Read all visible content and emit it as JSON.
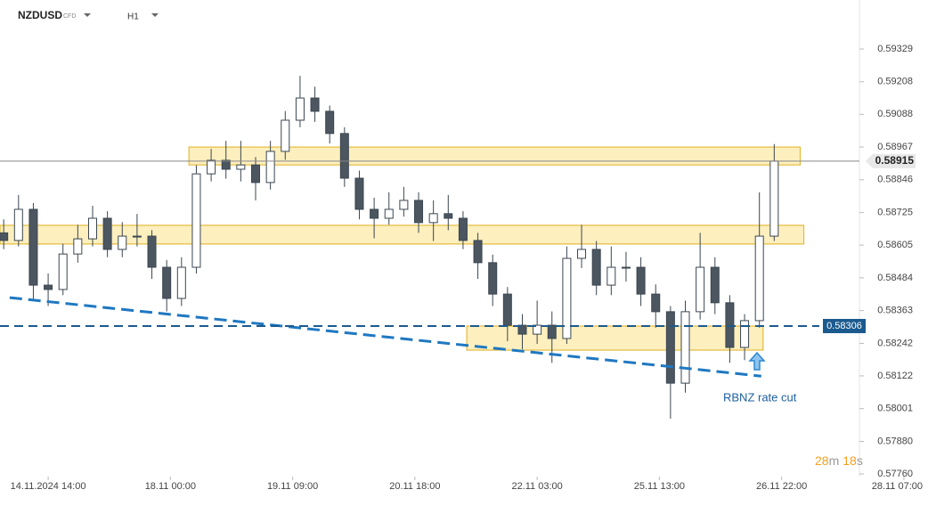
{
  "header": {
    "symbol": "NZDUSD",
    "instrument_type": "CFD",
    "timeframe": "H1"
  },
  "chart_data": {
    "type": "candlestick",
    "x": [
      -12,
      -8,
      -4,
      0,
      4,
      8,
      12,
      16,
      20,
      24,
      28,
      32,
      36,
      40,
      44,
      48,
      52,
      56,
      60,
      64,
      68,
      72,
      76,
      80,
      84,
      88,
      92,
      96,
      100,
      104,
      108,
      112,
      116,
      120,
      124,
      128,
      132,
      136,
      140,
      144,
      148,
      152,
      156,
      160,
      164,
      168,
      172,
      176,
      180,
      184,
      188,
      192,
      196
    ],
    "open": [
      0.5865,
      0.58622,
      0.58737,
      0.58457,
      0.58441,
      0.58572,
      0.58628,
      0.58704,
      0.58589,
      0.58638,
      0.58638,
      0.58523,
      0.58408,
      0.58523,
      0.58868,
      0.58918,
      0.58885,
      0.58901,
      0.58836,
      0.58951,
      0.59066,
      0.59148,
      0.59099,
      0.59017,
      0.58852,
      0.58737,
      0.58704,
      0.58737,
      0.5877,
      0.58688,
      0.58721,
      0.58704,
      0.58622,
      0.5854,
      0.58424,
      0.58309,
      0.58276,
      0.58309,
      0.5826,
      0.58556,
      0.58589,
      0.58457,
      0.58523,
      0.58523,
      0.58424,
      0.58359,
      0.58095,
      0.58359,
      0.58523,
      0.58392,
      0.58227,
      0.58326,
      0.58638
    ],
    "high": [
      0.587,
      0.5879,
      0.5876,
      0.585,
      0.5861,
      0.5868,
      0.5875,
      0.5873,
      0.5869,
      0.5872,
      0.5866,
      0.5855,
      0.5856,
      0.589,
      0.5896,
      0.5899,
      0.5899,
      0.5893,
      0.5899,
      0.591,
      0.5923,
      0.5919,
      0.5912,
      0.5904,
      0.5888,
      0.5878,
      0.588,
      0.5882,
      0.588,
      0.5877,
      0.5879,
      0.5873,
      0.5865,
      0.5857,
      0.5845,
      0.5835,
      0.584,
      0.5836,
      0.586,
      0.5868,
      0.5862,
      0.586,
      0.5858,
      0.5856,
      0.5846,
      0.5838,
      0.584,
      0.5865,
      0.5856,
      0.5842,
      0.5835,
      0.588,
      0.58978
    ],
    "low": [
      0.5859,
      0.586,
      0.584,
      0.5838,
      0.5842,
      0.5854,
      0.586,
      0.5856,
      0.5856,
      0.586,
      0.5848,
      0.5836,
      0.5838,
      0.585,
      0.5884,
      0.5885,
      0.5884,
      0.5877,
      0.5881,
      0.5892,
      0.5904,
      0.5906,
      0.5898,
      0.5882,
      0.587,
      0.5863,
      0.5868,
      0.5871,
      0.5865,
      0.5862,
      0.5866,
      0.5859,
      0.5848,
      0.5838,
      0.5825,
      0.5822,
      0.5824,
      0.5817,
      0.5824,
      0.5852,
      0.5842,
      0.5842,
      0.5847,
      0.5838,
      0.583,
      0.57964,
      0.5806,
      0.5833,
      0.5835,
      0.5817,
      0.5818,
      0.583,
      0.5862
    ],
    "close": [
      0.58622,
      0.58737,
      0.58457,
      0.58441,
      0.58572,
      0.58628,
      0.58704,
      0.58589,
      0.58638,
      0.58638,
      0.58523,
      0.58408,
      0.58523,
      0.58868,
      0.58918,
      0.58885,
      0.58901,
      0.58836,
      0.58951,
      0.59066,
      0.59148,
      0.59099,
      0.59017,
      0.58852,
      0.58737,
      0.58704,
      0.58737,
      0.5877,
      0.58688,
      0.58721,
      0.58704,
      0.58622,
      0.5854,
      0.58424,
      0.58309,
      0.58276,
      0.58309,
      0.5826,
      0.58556,
      0.58589,
      0.58457,
      0.58523,
      0.58523,
      0.58424,
      0.58359,
      0.58095,
      0.58359,
      0.58523,
      0.58392,
      0.58227,
      0.58326,
      0.58638,
      0.58915
    ],
    "up_color": "#ffffff",
    "down_color": "#4b5660",
    "wick_color": "#3b4650",
    "xlim": [
      -13,
      219
    ],
    "xticks": [
      {
        "value": 0,
        "label": "14.11.2024 14:00"
      },
      {
        "value": 33,
        "label": "18.11 00:00"
      },
      {
        "value": 66,
        "label": "19.11 09:00"
      },
      {
        "value": 99,
        "label": "20.11 18:00"
      },
      {
        "value": 132,
        "label": "22.11 03:00"
      },
      {
        "value": 165,
        "label": "25.11 13:00"
      },
      {
        "value": 198,
        "label": "26.11 22:00"
      },
      {
        "value": 231,
        "label": "28.11 07:00"
      }
    ],
    "ylim": [
      0.5775,
      0.5951
    ],
    "yticks": [
      0.59329,
      0.59208,
      0.59088,
      0.58967,
      0.58846,
      0.58725,
      0.58605,
      0.58484,
      0.58363,
      0.58242,
      0.58122,
      0.58001,
      {
        "value": 0.5788,
        "label": "0.57880"
      },
      {
        "value": 0.5776,
        "label": "0.57760"
      }
    ],
    "current_price": 0.58915,
    "level": 0.58306,
    "zones": [
      {
        "x": [
          38,
          203
        ],
        "y": [
          0.58901,
          0.58967
        ]
      },
      {
        "x": [
          -13,
          204
        ],
        "y": [
          0.58609,
          0.58678
        ]
      },
      {
        "x": [
          113,
          193
        ],
        "y": [
          0.58217,
          0.58306
        ]
      }
    ],
    "trendline": {
      "x": [
        -10.4,
        192.5
      ],
      "y": [
        0.58411,
        0.58121
      ]
    },
    "annotation": "RBNZ rate cut",
    "countdown": {
      "minutes": 28,
      "minutes_unit": "m",
      "seconds": 18,
      "seconds_unit": "s"
    }
  }
}
